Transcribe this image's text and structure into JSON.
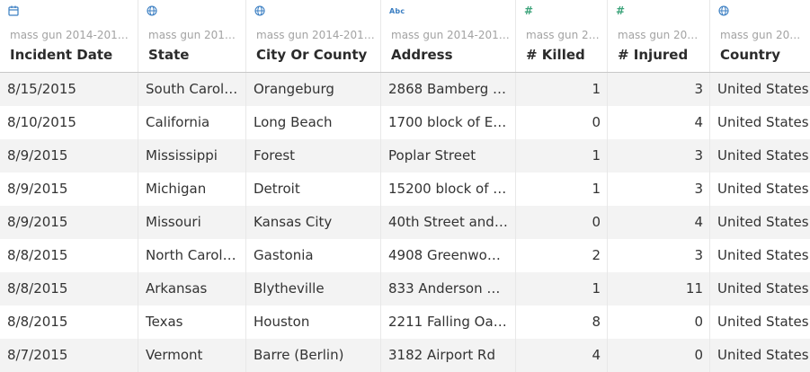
{
  "columns": [
    {
      "type_icon": "calendar-icon",
      "source": "mass gun 2014-2018.c...",
      "name": "Incident Date"
    },
    {
      "type_icon": "globe-icon",
      "source": "mass gun 2014-2...",
      "name": "State"
    },
    {
      "type_icon": "globe-icon",
      "source": "mass gun 2014-2018.c...",
      "name": "City Or County"
    },
    {
      "type_icon": "abc-icon",
      "type_label": "Abc",
      "source": "mass gun 2014-2018.c...",
      "name": "Address"
    },
    {
      "type_icon": "hash-icon",
      "type_label": "#",
      "source": "mass gun 201...",
      "name": "# Killed"
    },
    {
      "type_icon": "hash-icon",
      "type_label": "#",
      "source": "mass gun 2014-...",
      "name": "# Injured"
    },
    {
      "type_icon": "globe-icon",
      "source": "mass gun 2014-2...",
      "name": "Country"
    }
  ],
  "rows": [
    [
      "8/15/2015",
      "South Carolina",
      "Orangeburg",
      "2868 Bamberg R...",
      "1",
      "3",
      "United States"
    ],
    [
      "8/10/2015",
      "California",
      "Long Beach",
      "1700 block of Ea...",
      "0",
      "4",
      "United States"
    ],
    [
      "8/9/2015",
      "Mississippi",
      "Forest",
      "Poplar Street",
      "1",
      "3",
      "United States"
    ],
    [
      "8/9/2015",
      "Michigan",
      "Detroit",
      "15200 block of H...",
      "1",
      "3",
      "United States"
    ],
    [
      "8/9/2015",
      "Missouri",
      "Kansas City",
      "40th Street and ...",
      "0",
      "4",
      "United States"
    ],
    [
      "8/8/2015",
      "North Carolina",
      "Gastonia",
      "4908 Greenwood...",
      "2",
      "3",
      "United States"
    ],
    [
      "8/8/2015",
      "Arkansas",
      "Blytheville",
      "833 Anderson St...",
      "1",
      "11",
      "United States"
    ],
    [
      "8/8/2015",
      "Texas",
      "Houston",
      "2211 Falling Oaks",
      "8",
      "0",
      "United States"
    ],
    [
      "8/7/2015",
      "Vermont",
      "Barre (Berlin)",
      "3182 Airport Rd",
      "4",
      "0",
      "United States"
    ]
  ],
  "colors": {
    "calendar_icon": "#3a7ec2",
    "globe_icon": "#3a7ec2",
    "abc_icon": "#3a7ec2",
    "hash_icon": "#3ca37a",
    "alt_row": "#f3f3f3"
  }
}
